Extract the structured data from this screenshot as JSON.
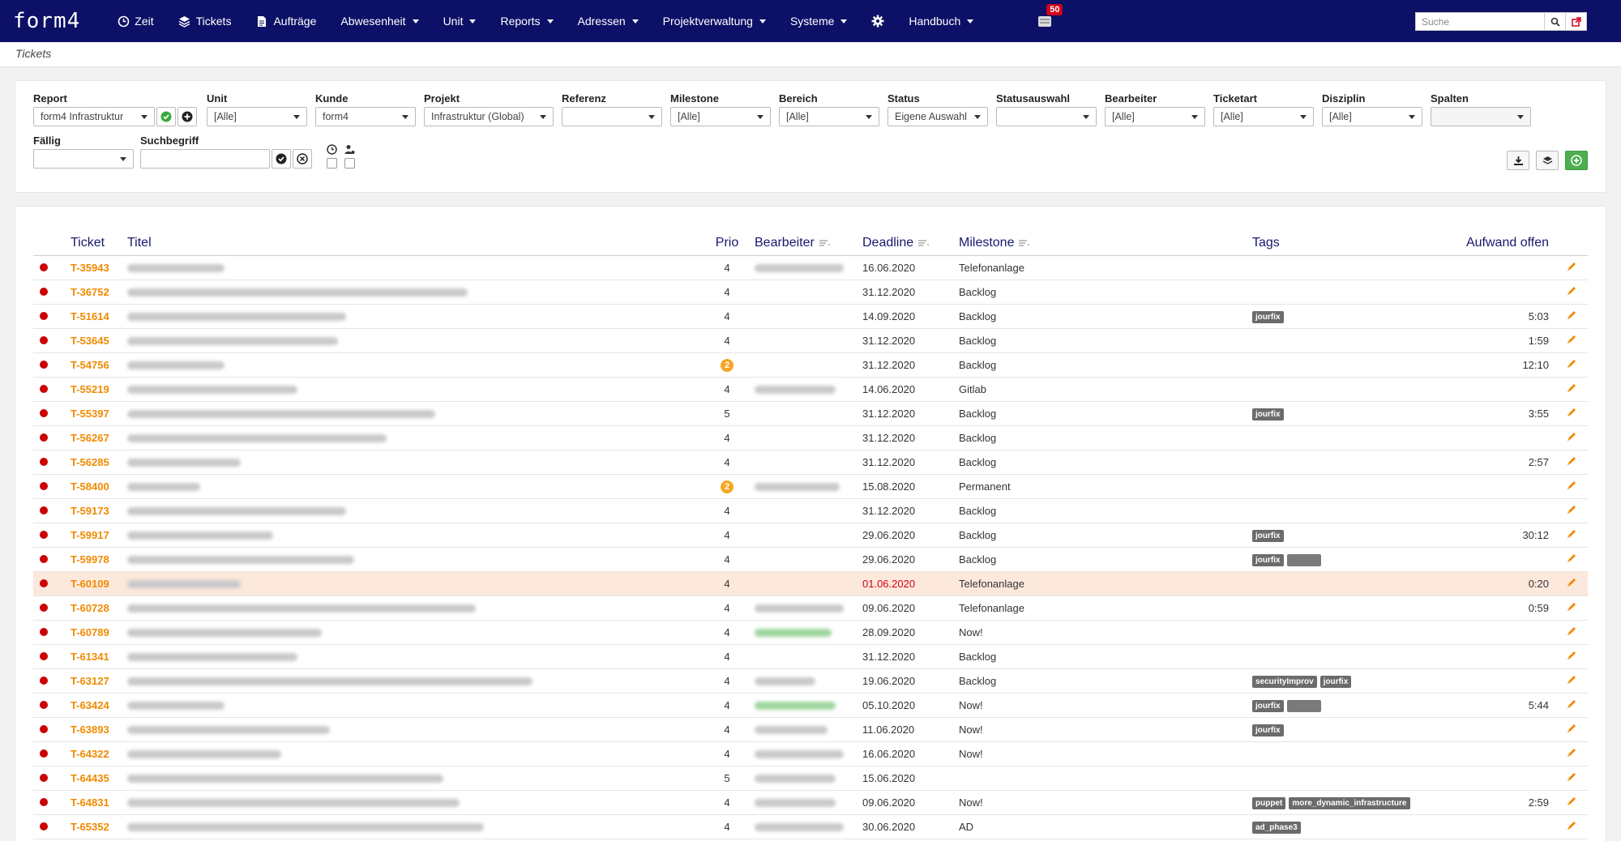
{
  "app": {
    "logo": "form4"
  },
  "nav": {
    "items": [
      {
        "label": "Zeit",
        "icon": "clock-icon",
        "caret": false
      },
      {
        "label": "Tickets",
        "icon": "layers-icon",
        "caret": false
      },
      {
        "label": "Aufträge",
        "icon": "document-icon",
        "caret": false
      },
      {
        "label": "Abwesenheit",
        "icon": "",
        "caret": true
      },
      {
        "label": "Unit",
        "icon": "",
        "caret": true
      },
      {
        "label": "Reports",
        "icon": "",
        "caret": true
      },
      {
        "label": "Adressen",
        "icon": "",
        "caret": true
      },
      {
        "label": "Projektverwaltung",
        "icon": "",
        "caret": true
      },
      {
        "label": "Systeme",
        "icon": "",
        "caret": true
      },
      {
        "label": "",
        "icon": "gear-icon",
        "caret": false
      },
      {
        "label": "Handbuch",
        "icon": "",
        "caret": true
      }
    ],
    "notification_count": "50",
    "search_placeholder": "Suche"
  },
  "breadcrumb": "Tickets",
  "filters": {
    "report": {
      "label": "Report",
      "value": "form4 Infrastruktur"
    },
    "unit": {
      "label": "Unit",
      "value": "[Alle]"
    },
    "kunde": {
      "label": "Kunde",
      "value": "form4"
    },
    "projekt": {
      "label": "Projekt",
      "value": "Infrastruktur (Global)"
    },
    "referenz": {
      "label": "Referenz",
      "value": ""
    },
    "milestone": {
      "label": "Milestone",
      "value": "[Alle]"
    },
    "bereich": {
      "label": "Bereich",
      "value": "[Alle]"
    },
    "status": {
      "label": "Status",
      "value": "Eigene Auswahl"
    },
    "statusauswahl": {
      "label": "Statusauswahl",
      "value": ""
    },
    "bearbeiter": {
      "label": "Bearbeiter",
      "value": "[Alle]"
    },
    "ticketart": {
      "label": "Ticketart",
      "value": "[Alle]"
    },
    "disziplin": {
      "label": "Disziplin",
      "value": "[Alle]"
    },
    "spalten": {
      "label": "Spalten",
      "value": ""
    },
    "faellig": {
      "label": "Fällig",
      "value": ""
    },
    "suchbegriff": {
      "label": "Suchbegriff",
      "value": ""
    }
  },
  "table": {
    "headers": [
      "Ticket",
      "Titel",
      "Prio",
      "Bearbeiter",
      "Deadline",
      "Milestone",
      "Tags",
      "Aufwand offen"
    ],
    "rows": [
      {
        "id": "T-35943",
        "prio": "4",
        "prio_circle": false,
        "deadline": "16.06.2020",
        "overdue": false,
        "milestone": "Telefonanlage",
        "tags": [],
        "aufwand": "",
        "highlight": false
      },
      {
        "id": "T-36752",
        "prio": "4",
        "prio_circle": false,
        "deadline": "31.12.2020",
        "overdue": false,
        "milestone": "Backlog",
        "tags": [],
        "aufwand": "",
        "highlight": false
      },
      {
        "id": "T-51614",
        "prio": "4",
        "prio_circle": false,
        "deadline": "14.09.2020",
        "overdue": false,
        "milestone": "Backlog",
        "tags": [
          "jourfix"
        ],
        "aufwand": "5:03",
        "highlight": false
      },
      {
        "id": "T-53645",
        "prio": "4",
        "prio_circle": false,
        "deadline": "31.12.2020",
        "overdue": false,
        "milestone": "Backlog",
        "tags": [],
        "aufwand": "1:59",
        "highlight": false
      },
      {
        "id": "T-54756",
        "prio": "2",
        "prio_circle": true,
        "deadline": "31.12.2020",
        "overdue": false,
        "milestone": "Backlog",
        "tags": [],
        "aufwand": "12:10",
        "highlight": false
      },
      {
        "id": "T-55219",
        "prio": "4",
        "prio_circle": false,
        "deadline": "14.06.2020",
        "overdue": false,
        "milestone": "Gitlab",
        "tags": [],
        "aufwand": "",
        "highlight": false
      },
      {
        "id": "T-55397",
        "prio": "5",
        "prio_circle": false,
        "deadline": "31.12.2020",
        "overdue": false,
        "milestone": "Backlog",
        "tags": [
          "jourfix"
        ],
        "aufwand": "3:55",
        "highlight": false
      },
      {
        "id": "T-56267",
        "prio": "4",
        "prio_circle": false,
        "deadline": "31.12.2020",
        "overdue": false,
        "milestone": "Backlog",
        "tags": [],
        "aufwand": "",
        "highlight": false
      },
      {
        "id": "T-56285",
        "prio": "4",
        "prio_circle": false,
        "deadline": "31.12.2020",
        "overdue": false,
        "milestone": "Backlog",
        "tags": [],
        "aufwand": "2:57",
        "highlight": false
      },
      {
        "id": "T-58400",
        "prio": "2",
        "prio_circle": true,
        "deadline": "15.08.2020",
        "overdue": false,
        "milestone": "Permanent",
        "tags": [],
        "aufwand": "",
        "highlight": false
      },
      {
        "id": "T-59173",
        "prio": "4",
        "prio_circle": false,
        "deadline": "31.12.2020",
        "overdue": false,
        "milestone": "Backlog",
        "tags": [],
        "aufwand": "",
        "highlight": false
      },
      {
        "id": "T-59917",
        "prio": "4",
        "prio_circle": false,
        "deadline": "29.06.2020",
        "overdue": false,
        "milestone": "Backlog",
        "tags": [
          "jourfix"
        ],
        "aufwand": "30:12",
        "highlight": false
      },
      {
        "id": "T-59978",
        "prio": "4",
        "prio_circle": false,
        "deadline": "29.06.2020",
        "overdue": false,
        "milestone": "Backlog",
        "tags": [
          "jourfix",
          ""
        ],
        "aufwand": "",
        "highlight": false
      },
      {
        "id": "T-60109",
        "prio": "4",
        "prio_circle": false,
        "deadline": "01.06.2020",
        "overdue": true,
        "milestone": "Telefonanlage",
        "tags": [],
        "aufwand": "0:20",
        "highlight": true
      },
      {
        "id": "T-60728",
        "prio": "4",
        "prio_circle": false,
        "deadline": "09.06.2020",
        "overdue": false,
        "milestone": "Telefonanlage",
        "tags": [],
        "aufwand": "0:59",
        "highlight": false
      },
      {
        "id": "T-60789",
        "prio": "4",
        "prio_circle": false,
        "deadline": "28.09.2020",
        "overdue": false,
        "milestone": "Now!",
        "tags": [],
        "aufwand": "",
        "highlight": false
      },
      {
        "id": "T-61341",
        "prio": "4",
        "prio_circle": false,
        "deadline": "31.12.2020",
        "overdue": false,
        "milestone": "Backlog",
        "tags": [],
        "aufwand": "",
        "highlight": false
      },
      {
        "id": "T-63127",
        "prio": "4",
        "prio_circle": false,
        "deadline": "19.06.2020",
        "overdue": false,
        "milestone": "Backlog",
        "tags": [
          "securityImprov",
          "jourfix"
        ],
        "aufwand": "",
        "highlight": false
      },
      {
        "id": "T-63424",
        "prio": "4",
        "prio_circle": false,
        "deadline": "05.10.2020",
        "overdue": false,
        "milestone": "Now!",
        "tags": [
          "jourfix",
          ""
        ],
        "aufwand": "5:44",
        "highlight": false
      },
      {
        "id": "T-63893",
        "prio": "4",
        "prio_circle": false,
        "deadline": "11.06.2020",
        "overdue": false,
        "milestone": "Now!",
        "tags": [
          "jourfix"
        ],
        "aufwand": "",
        "highlight": false
      },
      {
        "id": "T-64322",
        "prio": "4",
        "prio_circle": false,
        "deadline": "16.06.2020",
        "overdue": false,
        "milestone": "Now!",
        "tags": [],
        "aufwand": "",
        "highlight": false
      },
      {
        "id": "T-64435",
        "prio": "5",
        "prio_circle": false,
        "deadline": "15.06.2020",
        "overdue": false,
        "milestone": "",
        "tags": [],
        "aufwand": "",
        "highlight": false
      },
      {
        "id": "T-64831",
        "prio": "4",
        "prio_circle": false,
        "deadline": "09.06.2020",
        "overdue": false,
        "milestone": "Now!",
        "tags": [
          "puppet",
          "more_dynamic_infrastructure"
        ],
        "aufwand": "2:59",
        "highlight": false
      },
      {
        "id": "T-65352",
        "prio": "4",
        "prio_circle": false,
        "deadline": "30.06.2020",
        "overdue": false,
        "milestone": "AD",
        "tags": [
          "ad_phase3"
        ],
        "aufwand": "",
        "highlight": false
      }
    ]
  },
  "colors": {
    "navbar": "#0c1066",
    "ticket_id": "#f08a00",
    "status_dot": "#cc0000",
    "overdue": "#d0021b",
    "highlight_row": "#fde8dc"
  }
}
